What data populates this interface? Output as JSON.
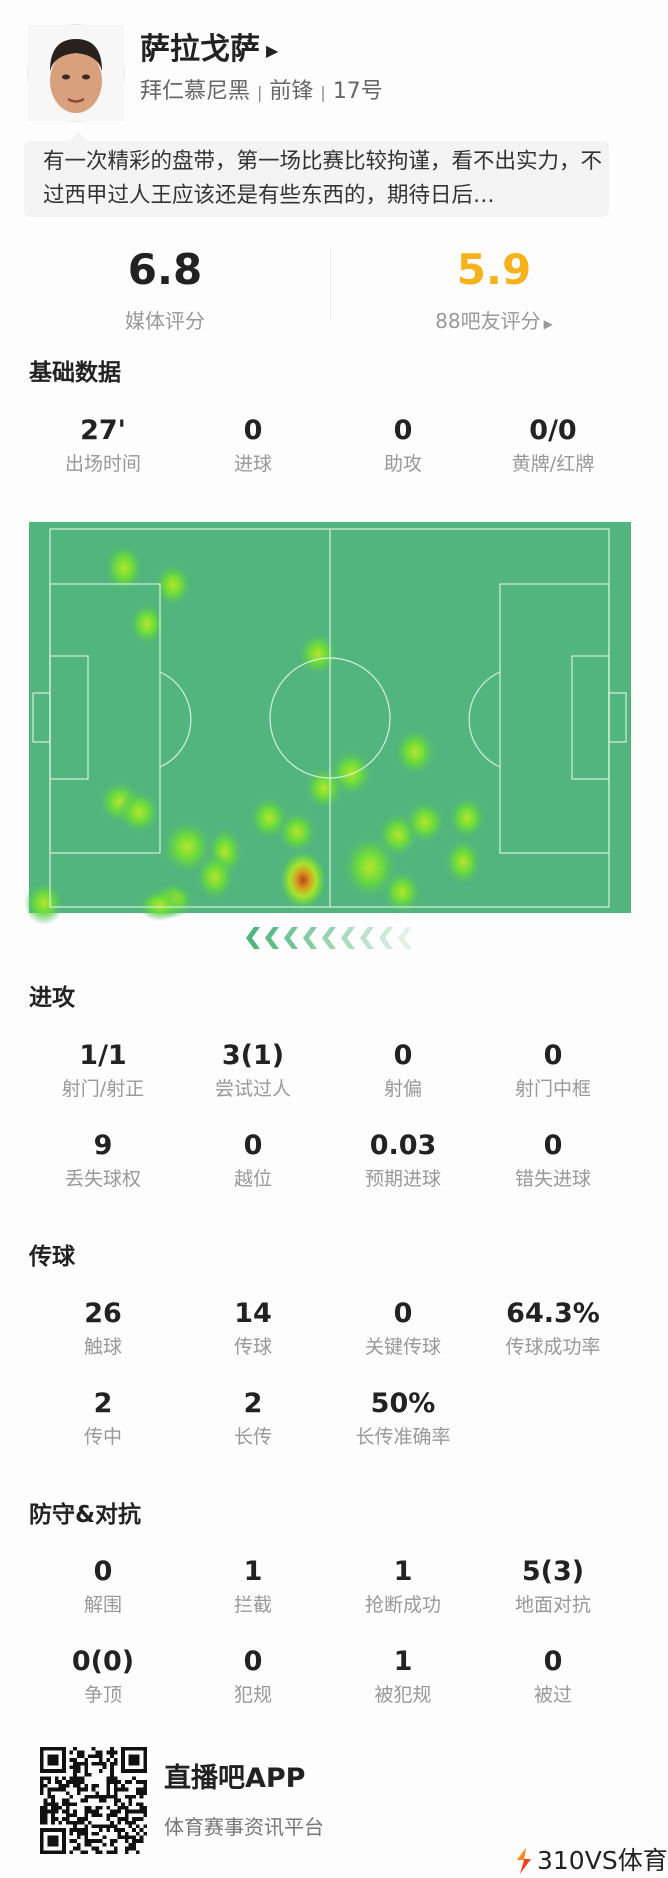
{
  "player": {
    "name": "萨拉戈萨",
    "team": "拜仁慕尼黑",
    "position": "前锋",
    "number": "17号",
    "separator": "|",
    "comment": "有一次精彩的盘带，第一场比赛比较拘谨，看不出实力，不过西甲过人王应该还是有些东西的，期待日后…"
  },
  "ratings": {
    "media": {
      "value": "6.8",
      "label": "媒体评分"
    },
    "fans": {
      "value": "5.9",
      "label": "88吧友评分",
      "color": "#f5b21c"
    }
  },
  "sections": {
    "basic": {
      "title": "基础数据",
      "rows": [
        [
          {
            "value": "27'",
            "label": "出场时间"
          },
          {
            "value": "0",
            "label": "进球"
          },
          {
            "value": "0",
            "label": "助攻"
          },
          {
            "value": "0/0",
            "label": "黄牌/红牌"
          }
        ]
      ]
    },
    "attack": {
      "title": "进攻",
      "rows": [
        [
          {
            "value": "1/1",
            "label": "射门/射正"
          },
          {
            "value": "3(1)",
            "label": "尝试过人"
          },
          {
            "value": "0",
            "label": "射偏"
          },
          {
            "value": "0",
            "label": "射门中框"
          }
        ],
        [
          {
            "value": "9",
            "label": "丢失球权"
          },
          {
            "value": "0",
            "label": "越位"
          },
          {
            "value": "0.03",
            "label": "预期进球"
          },
          {
            "value": "0",
            "label": "错失进球"
          }
        ]
      ]
    },
    "passing": {
      "title": "传球",
      "rows": [
        [
          {
            "value": "26",
            "label": "触球"
          },
          {
            "value": "14",
            "label": "传球"
          },
          {
            "value": "0",
            "label": "关键传球"
          },
          {
            "value": "64.3%",
            "label": "传球成功率"
          }
        ],
        [
          {
            "value": "2",
            "label": "传中"
          },
          {
            "value": "2",
            "label": "长传"
          },
          {
            "value": "50%",
            "label": "长传准确率"
          }
        ]
      ]
    },
    "defense": {
      "title": "防守&对抗",
      "rows": [
        [
          {
            "value": "0",
            "label": "解围"
          },
          {
            "value": "1",
            "label": "拦截"
          },
          {
            "value": "1",
            "label": "抢断成功"
          },
          {
            "value": "5(3)",
            "label": "地面对抗"
          }
        ],
        [
          {
            "value": "0(0)",
            "label": "争顶"
          },
          {
            "value": "0",
            "label": "犯规"
          },
          {
            "value": "1",
            "label": "被犯规"
          },
          {
            "value": "0",
            "label": "被过"
          }
        ]
      ]
    }
  },
  "heatmap": {
    "pitch_color": "#52b57e",
    "attack_direction": "left"
  },
  "footer": {
    "app_name": "直播吧APP",
    "slogan": "体育赛事资讯平台",
    "watermark": "310VS体育"
  },
  "icons": {
    "name_arrow": "triangle-right-icon",
    "fans_arrow": "triangle-right-icon",
    "watermark_logo": "lightning-icon"
  }
}
